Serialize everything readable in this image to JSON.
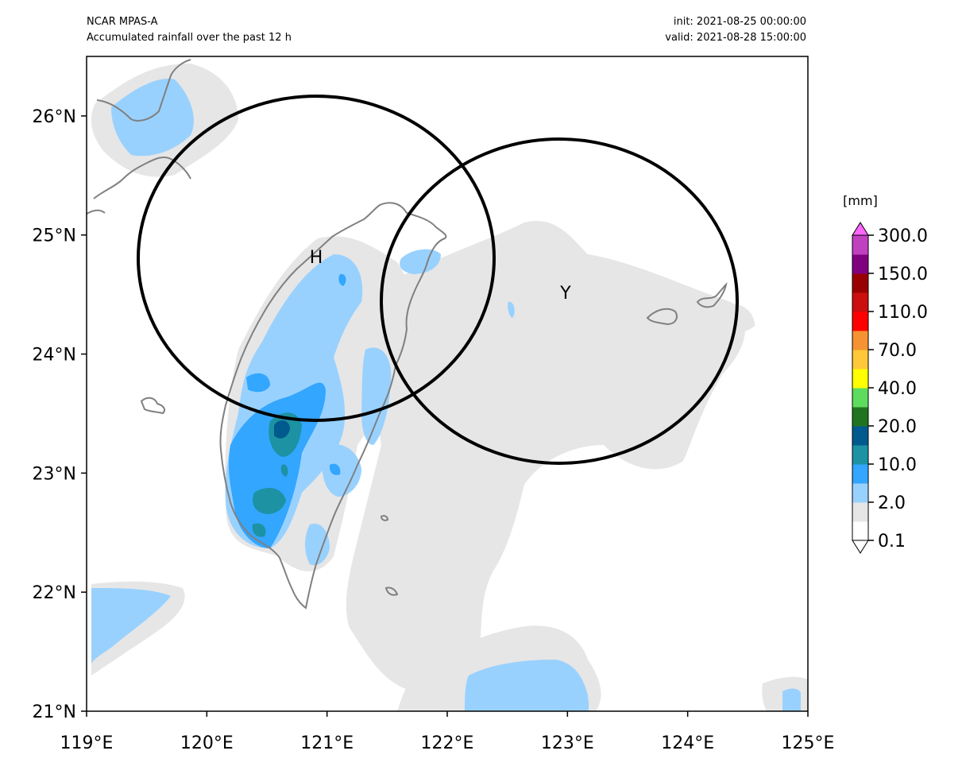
{
  "header": {
    "model": "NCAR MPAS-A",
    "description": "Accumulated rainfall over the past 12 h",
    "init": "init: 2021-08-25 00:00:00",
    "valid": "valid: 2021-08-28 15:00:00"
  },
  "map": {
    "lon_range": [
      119,
      125
    ],
    "lat_range": [
      21,
      26.5
    ],
    "x_ticks": [
      {
        "lon": 119,
        "label": "119°E"
      },
      {
        "lon": 120,
        "label": "120°E"
      },
      {
        "lon": 121,
        "label": "121°E"
      },
      {
        "lon": 122,
        "label": "122°E"
      },
      {
        "lon": 123,
        "label": "123°E"
      },
      {
        "lon": 124,
        "label": "124°E"
      },
      {
        "lon": 125,
        "label": "125°E"
      }
    ],
    "y_ticks": [
      {
        "lat": 21,
        "label": "21°N"
      },
      {
        "lat": 22,
        "label": "22°N"
      },
      {
        "lat": 23,
        "label": "23°N"
      },
      {
        "lat": 24,
        "label": "24°N"
      },
      {
        "lat": 25,
        "label": "25°N"
      },
      {
        "lat": 26,
        "label": "26°N"
      }
    ],
    "radar_sites": [
      {
        "label": "H",
        "lon": 120.95,
        "lat": 24.84
      },
      {
        "label": "Y",
        "lon": 122.98,
        "lat": 24.47
      }
    ],
    "range_ring_color": "#000000",
    "coastline_color": "#808080"
  },
  "colorbar": {
    "unit": "[mm]",
    "levels": [
      0.1,
      1,
      2,
      6,
      10,
      15,
      20,
      30,
      40,
      50,
      70,
      90,
      110,
      130,
      150,
      200,
      300
    ],
    "labels": [
      "0.1",
      "2.0",
      "10.0",
      "20.0",
      "40.0",
      "70.0",
      "110.0",
      "150.0",
      "300.0"
    ],
    "colors": [
      "#ffffff",
      "#e6e6e6",
      "#99d1fe",
      "#33a6ff",
      "#1c92a3",
      "#005a8d",
      "#207420",
      "#5ddc5d",
      "#ffff00",
      "#ffc838",
      "#f59332",
      "#ff0000",
      "#cc0e0e",
      "#990000",
      "#800080",
      "#c040c0",
      "#ff66ff"
    ]
  }
}
